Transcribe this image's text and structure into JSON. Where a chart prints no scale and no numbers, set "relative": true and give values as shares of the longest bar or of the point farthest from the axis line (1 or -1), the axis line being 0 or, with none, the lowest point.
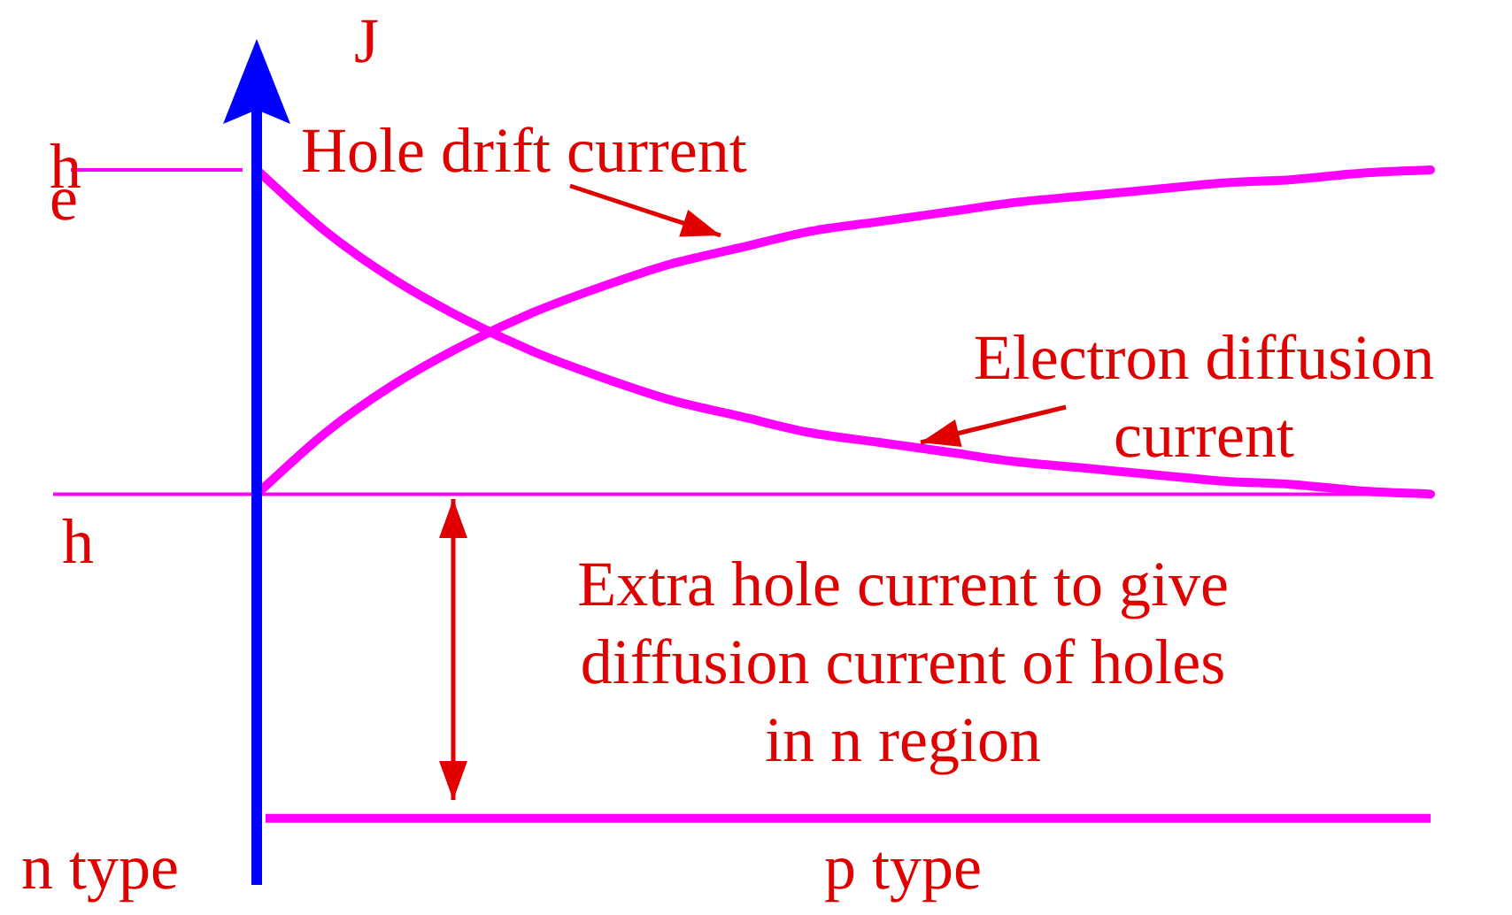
{
  "chart_data": {
    "type": "line",
    "relative": true,
    "ylabel": "J",
    "categories": [
      null,
      null,
      null,
      null,
      null,
      null,
      null,
      null,
      null,
      null,
      null,
      null,
      null,
      null,
      null,
      null,
      null,
      null
    ],
    "series": [
      {
        "color": "#ff00ff",
        "values": [
          0,
          0.19,
          0.34,
          0.46,
          0.56,
          0.64,
          0.71,
          0.76,
          0.81,
          0.84,
          0.87,
          0.9,
          0.92,
          0.94,
          0.96,
          0.97,
          0.99,
          1
        ]
      },
      {
        "color": "#ff00ff",
        "values": [
          1,
          0.81,
          0.66,
          0.54,
          0.44,
          0.36,
          0.29,
          0.24,
          0.19,
          0.16,
          0.13,
          0.1,
          0.08,
          0.06,
          0.04,
          0.03,
          0.01,
          0
        ]
      }
    ],
    "ref_lines": [
      {
        "axis": "y",
        "value": 1,
        "label": "h",
        "color": "#ff00ff"
      },
      {
        "axis": "y",
        "value": 0,
        "label": "h",
        "color": "#ff00ff"
      },
      {
        "axis": "y",
        "value": -1,
        "label": "p type",
        "color": "#ff00ff"
      }
    ],
    "annotations": [
      "Hole drift current",
      "Electron diffusion current",
      "e",
      "Extra hole current to give diffusion current of holes in n region",
      "n type"
    ],
    "marker": "none",
    "line_style": "solid"
  }
}
